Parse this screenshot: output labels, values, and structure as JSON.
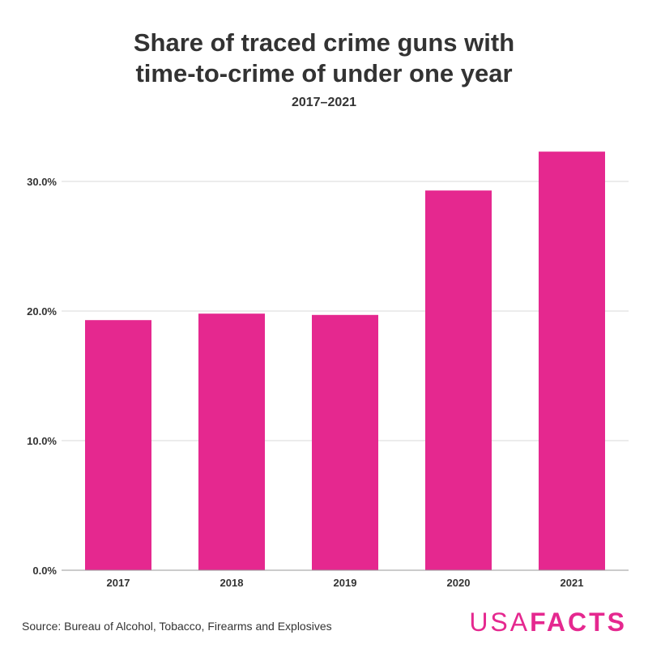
{
  "chart_data": {
    "type": "bar",
    "title": "Share of traced crime guns with\ntime-to-crime of under one year",
    "subtitle": "2017–2021",
    "categories": [
      "2017",
      "2018",
      "2019",
      "2020",
      "2021"
    ],
    "values": [
      19.3,
      19.8,
      19.7,
      29.3,
      32.3
    ],
    "y_ticks": [
      "0.0%",
      "10.0%",
      "20.0%",
      "30.0%"
    ],
    "y_tick_values": [
      0,
      10,
      20,
      30
    ],
    "ylim": [
      0,
      35
    ],
    "xlabel": "",
    "ylabel": "",
    "grid": true,
    "bar_color": "#e5288f"
  },
  "footer": {
    "source": "Source: Bureau of Alcohol, Tobacco, Firearms and Explosives",
    "brand_light": "USA",
    "brand_bold": "FACTS"
  }
}
